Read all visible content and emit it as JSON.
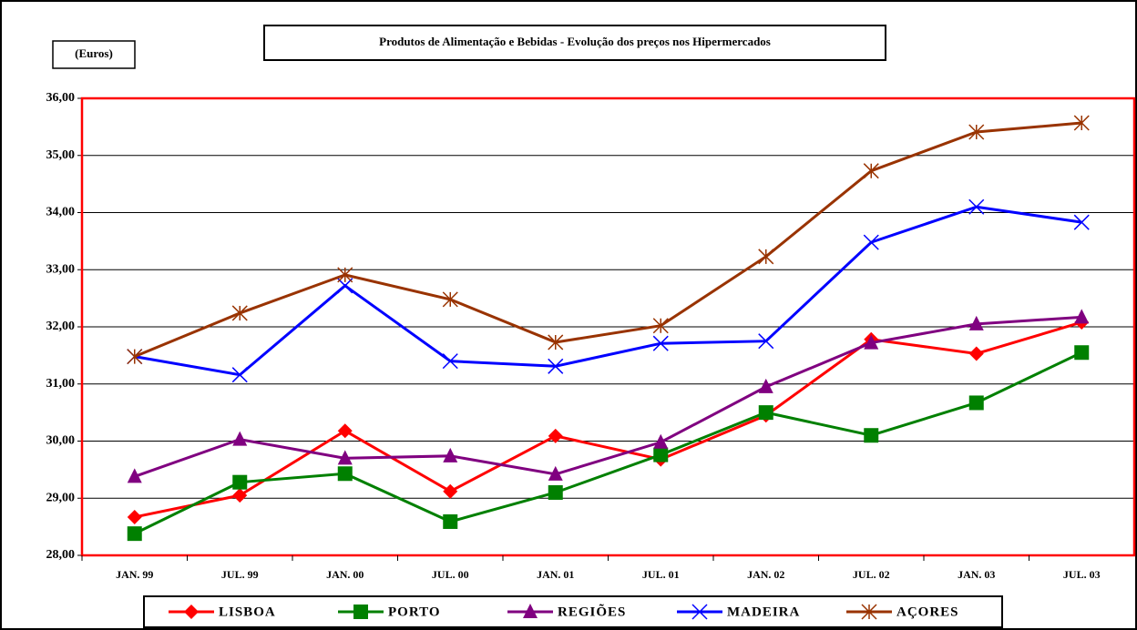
{
  "chart_data": {
    "type": "line",
    "title": "Produtos de Alimentação e Bebidas - Evolução dos preços nos Hipermercados",
    "y_label": "(Euros)",
    "categories": [
      "JAN. 99",
      "JUL. 99",
      "JAN. 00",
      "JUL. 00",
      "JAN. 01",
      "JUL. 01",
      "JAN. 02",
      "JUL. 02",
      "JAN. 03",
      "JUL. 03"
    ],
    "series": [
      {
        "name": "LISBOA",
        "color": "#ff0000",
        "marker": "diamond",
        "values": [
          28.67,
          29.05,
          30.18,
          29.12,
          30.09,
          29.68,
          30.45,
          31.78,
          31.53,
          32.08
        ]
      },
      {
        "name": "PORTO",
        "color": "#008000",
        "marker": "square",
        "values": [
          28.38,
          29.28,
          29.43,
          28.59,
          29.1,
          29.76,
          30.5,
          30.1,
          30.67,
          31.55
        ]
      },
      {
        "name": "REGIÕES",
        "color": "#800080",
        "marker": "triangle",
        "values": [
          29.38,
          30.03,
          29.7,
          29.74,
          29.42,
          29.98,
          30.95,
          31.72,
          32.05,
          32.17
        ]
      },
      {
        "name": "MADEIRA",
        "color": "#0000ff",
        "marker": "x",
        "values": [
          31.48,
          31.16,
          32.72,
          31.4,
          31.31,
          31.71,
          31.75,
          33.48,
          34.1,
          33.83
        ]
      },
      {
        "name": "AÇORES",
        "color": "#993300",
        "marker": "star",
        "values": [
          31.48,
          32.24,
          32.91,
          32.48,
          31.73,
          32.02,
          33.23,
          34.73,
          35.41,
          35.57
        ]
      }
    ],
    "ylim": [
      28,
      36
    ],
    "yticks": [
      {
        "value": 28,
        "label": "28,00"
      },
      {
        "value": 29,
        "label": "29,00"
      },
      {
        "value": 30,
        "label": "30,00"
      },
      {
        "value": 31,
        "label": "31,00"
      },
      {
        "value": 32,
        "label": "32,00"
      },
      {
        "value": 33,
        "label": "33,00"
      },
      {
        "value": 34,
        "label": "34,00"
      },
      {
        "value": 35,
        "label": "35,00"
      },
      {
        "value": 36,
        "label": "36,00"
      }
    ],
    "grid": true,
    "legend": "bottom"
  }
}
